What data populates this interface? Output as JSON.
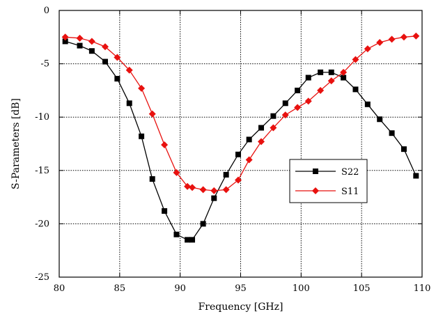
{
  "chart_data": {
    "type": "line",
    "title": "",
    "xlabel": "Frequency [GHz]",
    "ylabel": "S-Parameters [dB]",
    "xlim": [
      80,
      110
    ],
    "ylim": [
      -25,
      0
    ],
    "xticks": [
      80,
      85,
      90,
      95,
      100,
      105,
      110
    ],
    "yticks": [
      0,
      -5,
      -10,
      -15,
      -20,
      -25
    ],
    "grid": true,
    "legend_position": "center-right",
    "series": [
      {
        "name": "S22",
        "color": "#000000",
        "marker": "square",
        "x": [
          80.5,
          81.7,
          82.7,
          83.8,
          84.8,
          85.8,
          86.8,
          87.7,
          88.7,
          89.7,
          90.6,
          91.0,
          91.9,
          92.8,
          93.8,
          94.8,
          95.7,
          96.7,
          97.7,
          98.7,
          99.7,
          100.6,
          101.6,
          102.5,
          103.5,
          104.5,
          105.5,
          106.5,
          107.5,
          108.5,
          109.5
        ],
        "y": [
          -2.9,
          -3.3,
          -3.8,
          -4.8,
          -6.4,
          -8.7,
          -11.8,
          -15.8,
          -18.8,
          -21.0,
          -21.5,
          -21.5,
          -20.0,
          -17.6,
          -15.4,
          -13.5,
          -12.1,
          -11.0,
          -9.9,
          -8.7,
          -7.5,
          -6.3,
          -5.8,
          -5.8,
          -6.3,
          -7.4,
          -8.8,
          -10.2,
          -11.5,
          -13.0,
          -15.5
        ]
      },
      {
        "name": "S11",
        "color": "#e8110f",
        "marker": "diamond",
        "x": [
          80.5,
          81.7,
          82.7,
          83.8,
          84.8,
          85.8,
          86.8,
          87.7,
          88.7,
          89.7,
          90.6,
          91.0,
          91.9,
          92.8,
          93.8,
          94.8,
          95.7,
          96.7,
          97.7,
          98.7,
          99.7,
          100.6,
          101.6,
          102.5,
          103.5,
          104.5,
          105.5,
          106.5,
          107.5,
          108.5,
          109.5
        ],
        "y": [
          -2.5,
          -2.6,
          -2.9,
          -3.4,
          -4.4,
          -5.6,
          -7.3,
          -9.7,
          -12.6,
          -15.2,
          -16.5,
          -16.6,
          -16.8,
          -16.9,
          -16.8,
          -15.9,
          -14.0,
          -12.3,
          -11.0,
          -9.8,
          -9.1,
          -8.5,
          -7.5,
          -6.6,
          -5.8,
          -4.6,
          -3.6,
          -3.0,
          -2.7,
          -2.5,
          -2.4
        ]
      }
    ]
  }
}
